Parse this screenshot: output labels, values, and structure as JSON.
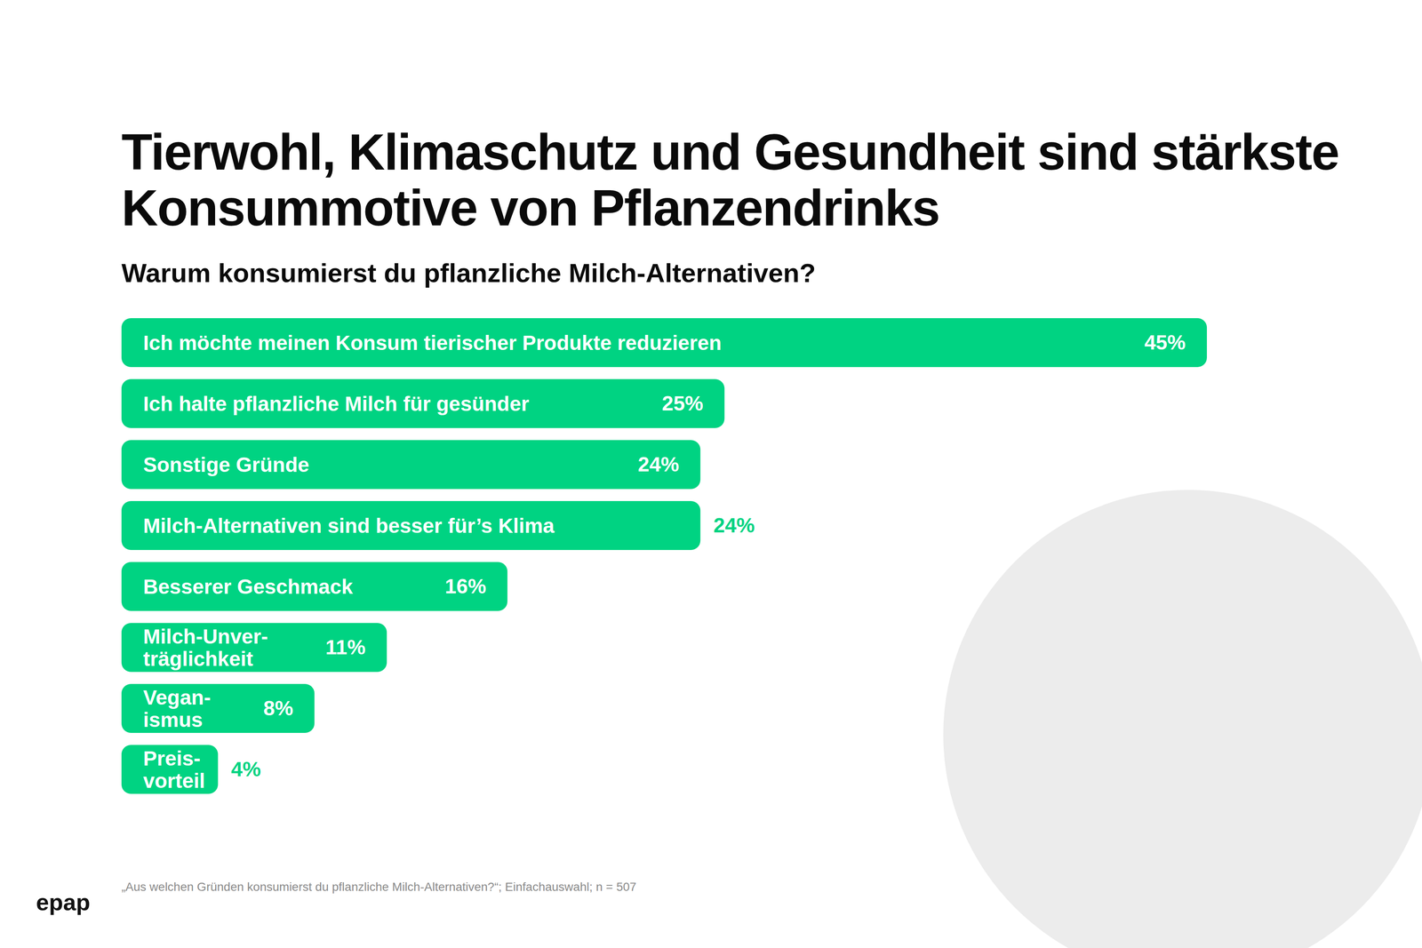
{
  "chart_data": {
    "type": "bar",
    "orientation": "horizontal",
    "title": "Tierwohl, Klimaschutz und Gesundheit sind stärkste Konsummotive von Pflanzendrinks",
    "subtitle": "Warum konsumierst du pflanzliche Milch-Alternativen?",
    "categories": [
      "Ich möchte meinen Konsum tierischer Produkte reduzieren",
      "Ich halte pflanzliche Milch für gesünder",
      "Sonstige Gründe",
      "Milch-Alternativen sind besser für’s Klima",
      "Besserer Geschmack",
      "Milch-Unver-\nträglichkeit",
      "Vegan-\nismus",
      "Preis-\nvorteil"
    ],
    "values": [
      45,
      25,
      24,
      24,
      16,
      11,
      8,
      4
    ],
    "value_labels": [
      "45%",
      "25%",
      "24%",
      "24%",
      "16%",
      "11%",
      "8%",
      "4%"
    ],
    "color": "#00d382",
    "xlim": [
      0,
      45
    ],
    "data_labels": true,
    "tick_labels": false,
    "grid": false,
    "caption": "„Aus welchen Gründen konsumierst du pflanzliche Milch-Alternativen?“; Einfachauswahl; n = 507",
    "source": "epap"
  }
}
